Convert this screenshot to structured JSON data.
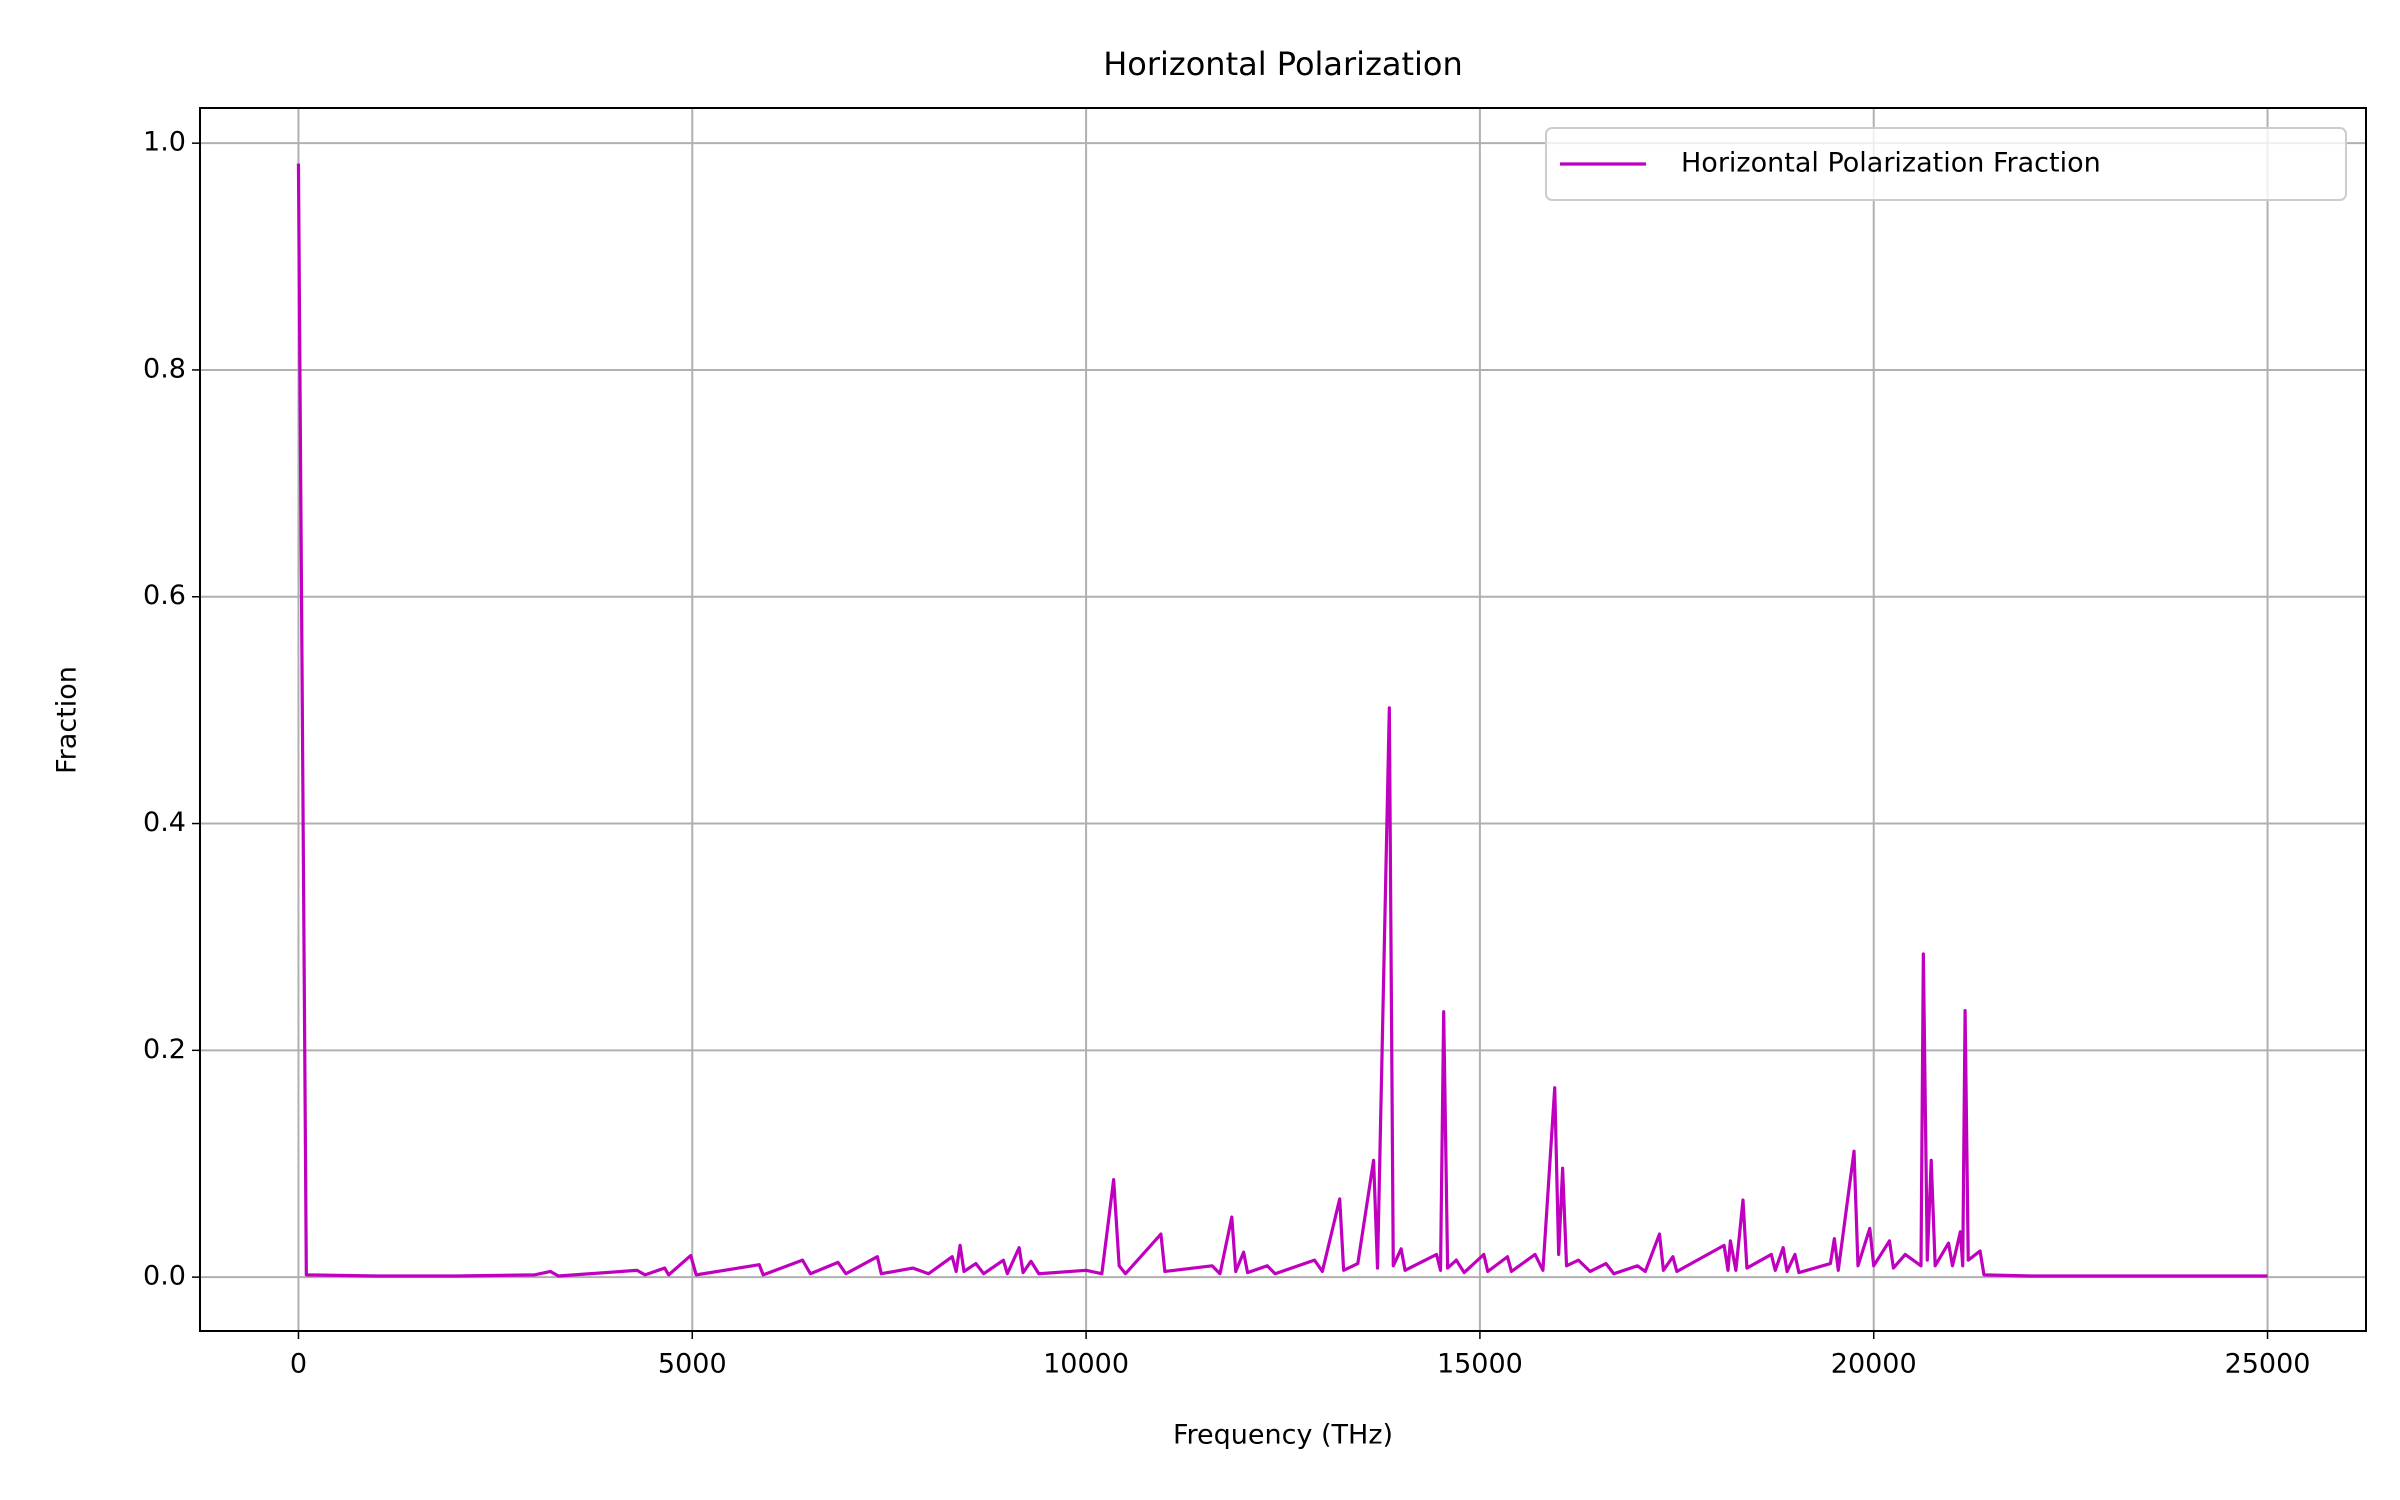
{
  "chart_data": {
    "type": "line",
    "title": "Horizontal Polarization",
    "x_label": "Frequency (THz)",
    "y_label": "Fraction",
    "x": [
      0,
      100,
      1000,
      2000,
      3000,
      3200,
      3300,
      4300,
      4400,
      4650,
      4700,
      4980,
      5050,
      5850,
      5900,
      6400,
      6500,
      6850,
      6950,
      7350,
      7400,
      7800,
      8000,
      8300,
      8350,
      8400,
      8450,
      8600,
      8700,
      8950,
      9000,
      9150,
      9200,
      9300,
      9400,
      10000,
      10200,
      10350,
      10420,
      10500,
      10950,
      11000,
      11600,
      11700,
      11850,
      11900,
      12000,
      12050,
      12300,
      12400,
      12900,
      13000,
      13220,
      13270,
      13450,
      13650,
      13700,
      13850,
      13900,
      14000,
      14050,
      14450,
      14500,
      14540,
      14590,
      14700,
      14800,
      15050,
      15100,
      15350,
      15400,
      15700,
      15800,
      15950,
      16000,
      16050,
      16100,
      16250,
      16400,
      16600,
      16700,
      17000,
      17100,
      17280,
      17330,
      17450,
      17500,
      18100,
      18150,
      18180,
      18250,
      18340,
      18390,
      18700,
      18750,
      18850,
      18900,
      19000,
      19050,
      19450,
      19500,
      19550,
      19750,
      19800,
      19950,
      20000,
      20200,
      20250,
      20400,
      20600,
      20630,
      20680,
      20730,
      20780,
      20950,
      21000,
      21100,
      21130,
      21160,
      21200,
      21350,
      21400,
      22000,
      25000
    ],
    "series": [
      {
        "name": "Horizontal Polarization Fraction",
        "color": "#bf00bf",
        "values": [
          0.982,
          0.002,
          0.001,
          0.001,
          0.002,
          0.005,
          0.001,
          0.006,
          0.002,
          0.008,
          0.002,
          0.019,
          0.002,
          0.011,
          0.002,
          0.015,
          0.003,
          0.013,
          0.003,
          0.018,
          0.003,
          0.008,
          0.003,
          0.018,
          0.005,
          0.028,
          0.005,
          0.012,
          0.003,
          0.015,
          0.003,
          0.026,
          0.004,
          0.014,
          0.003,
          0.006,
          0.003,
          0.086,
          0.01,
          0.003,
          0.038,
          0.005,
          0.01,
          0.003,
          0.053,
          0.005,
          0.022,
          0.004,
          0.01,
          0.003,
          0.015,
          0.005,
          0.069,
          0.006,
          0.012,
          0.103,
          0.008,
          0.502,
          0.01,
          0.025,
          0.006,
          0.02,
          0.006,
          0.234,
          0.008,
          0.015,
          0.004,
          0.02,
          0.005,
          0.018,
          0.005,
          0.02,
          0.006,
          0.167,
          0.02,
          0.096,
          0.01,
          0.015,
          0.005,
          0.012,
          0.003,
          0.01,
          0.005,
          0.038,
          0.006,
          0.018,
          0.005,
          0.028,
          0.006,
          0.032,
          0.006,
          0.068,
          0.008,
          0.02,
          0.006,
          0.026,
          0.005,
          0.02,
          0.004,
          0.012,
          0.034,
          0.006,
          0.111,
          0.01,
          0.043,
          0.01,
          0.032,
          0.008,
          0.02,
          0.01,
          0.285,
          0.015,
          0.103,
          0.01,
          0.03,
          0.01,
          0.04,
          0.01,
          0.235,
          0.015,
          0.023,
          0.002,
          0.001,
          0.001
        ]
      }
    ],
    "xlim": [
      -1250,
      26250
    ],
    "xticks": [
      0,
      5000,
      10000,
      15000,
      20000,
      25000
    ],
    "ylim": [
      -0.0475,
      1.031
    ],
    "yticks": [
      {
        "value": 0,
        "label": "0.0"
      },
      0.2,
      0.4,
      0.6,
      0.8,
      {
        "value": 1,
        "label": "1.0"
      }
    ],
    "grid": true,
    "legend": "upper right"
  }
}
